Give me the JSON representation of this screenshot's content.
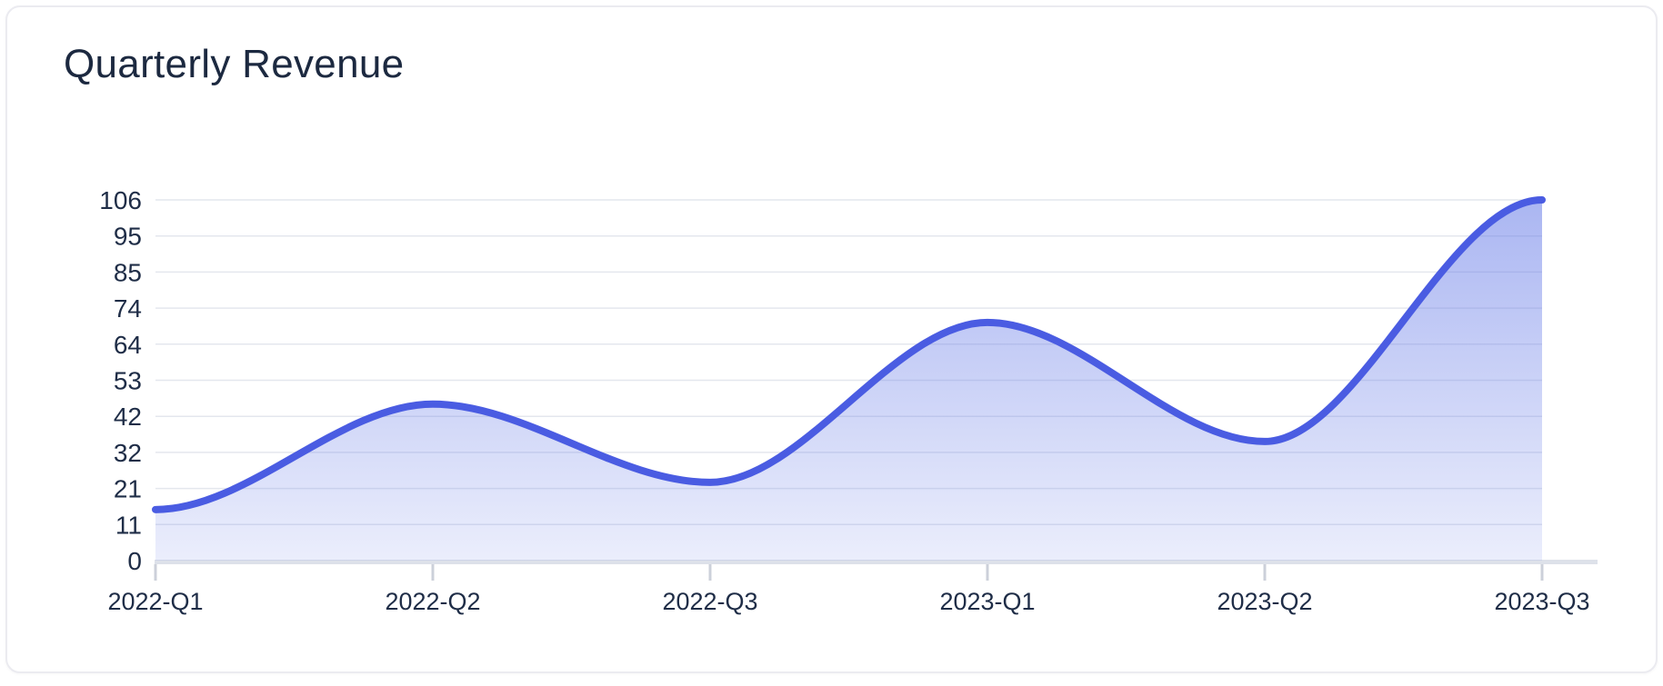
{
  "card": {
    "title": "Quarterly Revenue"
  },
  "chart_data": {
    "type": "area",
    "title": "Quarterly Revenue",
    "categories": [
      "2022-Q1",
      "2022-Q2",
      "2022-Q3",
      "2023-Q1",
      "2023-Q2",
      "2023-Q3"
    ],
    "series": [
      {
        "name": "Revenue",
        "values": [
          15,
          46,
          23,
          70,
          35,
          106
        ]
      }
    ],
    "smooth": true,
    "xlabel": "",
    "ylabel": "",
    "y_axis": {
      "min": 0,
      "max": 106,
      "tick_labels": [
        "0",
        "11",
        "21",
        "32",
        "42",
        "53",
        "64",
        "74",
        "85",
        "95",
        "106"
      ]
    },
    "legend_position": "none",
    "grid": "horizontal",
    "colors": {
      "line": "#4a5ce2",
      "area_top": "rgba(101,122,231,0.55)",
      "area_bottom": "rgba(101,122,231,0.13)",
      "grid_line": "#e4e7ee",
      "axis_line": "#dde1e9",
      "tick": "#ccd0da",
      "label": "#1f2d47",
      "title": "#1c2940"
    }
  }
}
